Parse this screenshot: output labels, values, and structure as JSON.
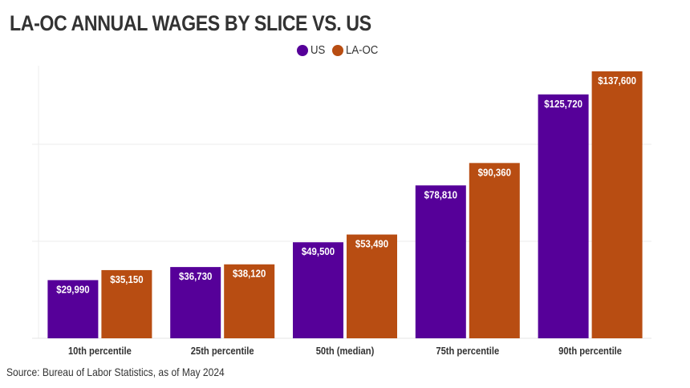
{
  "chart_data": {
    "type": "bar",
    "title": "LA-OC ANNUAL WAGES BY SLICE VS. US",
    "xlabel": "",
    "ylabel": "",
    "ylim": [
      0,
      140000
    ],
    "grid": true,
    "legend_position": "top-center",
    "categories": [
      "10th percentile",
      "25th percentile",
      "50th (median)",
      "75th percentile",
      "90th percentile"
    ],
    "series": [
      {
        "name": "US",
        "color": "#560099",
        "values": [
          29990,
          36730,
          49500,
          78810,
          125720
        ],
        "labels": [
          "$29,990",
          "$36,730",
          "$49,500",
          "$78,810",
          "$125,720"
        ]
      },
      {
        "name": "LA-OC",
        "color": "#b84d12",
        "values": [
          35150,
          38120,
          53490,
          90360,
          137600
        ],
        "labels": [
          "$35,150",
          "$38,120",
          "$53,490",
          "$90,360",
          "$137,600"
        ]
      }
    ],
    "gridlines": [
      50000,
      100000
    ],
    "source": "Source: Bureau of Labor Statistics, as of May 2024"
  }
}
